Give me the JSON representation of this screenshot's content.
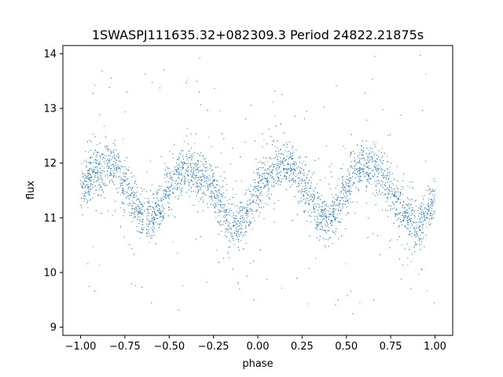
{
  "chart_data": {
    "type": "scatter",
    "title": "1SWASPJ111635.32+082309.3 Period 24822.21875s",
    "xlabel": "phase",
    "ylabel": "flux",
    "xlim": [
      -1.1,
      1.1
    ],
    "ylim": [
      8.85,
      14.15
    ],
    "xticks": [
      -1.0,
      -0.75,
      -0.5,
      -0.25,
      0.0,
      0.25,
      0.5,
      0.75,
      1.0
    ],
    "xtick_labels": [
      "−1.00",
      "−0.75",
      "−0.50",
      "−0.25",
      "0.00",
      "0.25",
      "0.50",
      "0.75",
      "1.00"
    ],
    "yticks": [
      9,
      10,
      11,
      12,
      13,
      14
    ],
    "ytick_labels": [
      "9",
      "10",
      "11",
      "12",
      "13",
      "14"
    ],
    "grid": false,
    "point_color": "#1f77b4",
    "series": [
      {
        "x": [
          -1.0,
          -0.95,
          -0.9,
          -0.85,
          -0.8,
          -0.75,
          -0.7,
          -0.65,
          -0.6,
          -0.55,
          -0.5,
          -0.45,
          -0.4,
          -0.35,
          -0.3,
          -0.25,
          -0.2,
          -0.15,
          -0.1,
          -0.05,
          0.0,
          0.05,
          0.1,
          0.15,
          0.2,
          0.25,
          0.3,
          0.35,
          0.4,
          0.45,
          0.5,
          0.55,
          0.6,
          0.65,
          0.7,
          0.75,
          0.8,
          0.85,
          0.9,
          0.95,
          1.0
        ],
        "y": [
          11.5,
          11.75,
          11.85,
          11.95,
          11.9,
          11.7,
          11.4,
          11.1,
          11.0,
          11.15,
          11.5,
          11.8,
          11.9,
          11.85,
          11.75,
          11.5,
          11.2,
          10.95,
          10.85,
          11.05,
          11.45,
          11.75,
          11.85,
          11.95,
          11.9,
          11.7,
          11.4,
          11.1,
          11.0,
          11.15,
          11.5,
          11.8,
          11.9,
          11.95,
          11.8,
          11.55,
          11.25,
          11.0,
          10.85,
          11.0,
          11.4
        ]
      }
    ]
  }
}
